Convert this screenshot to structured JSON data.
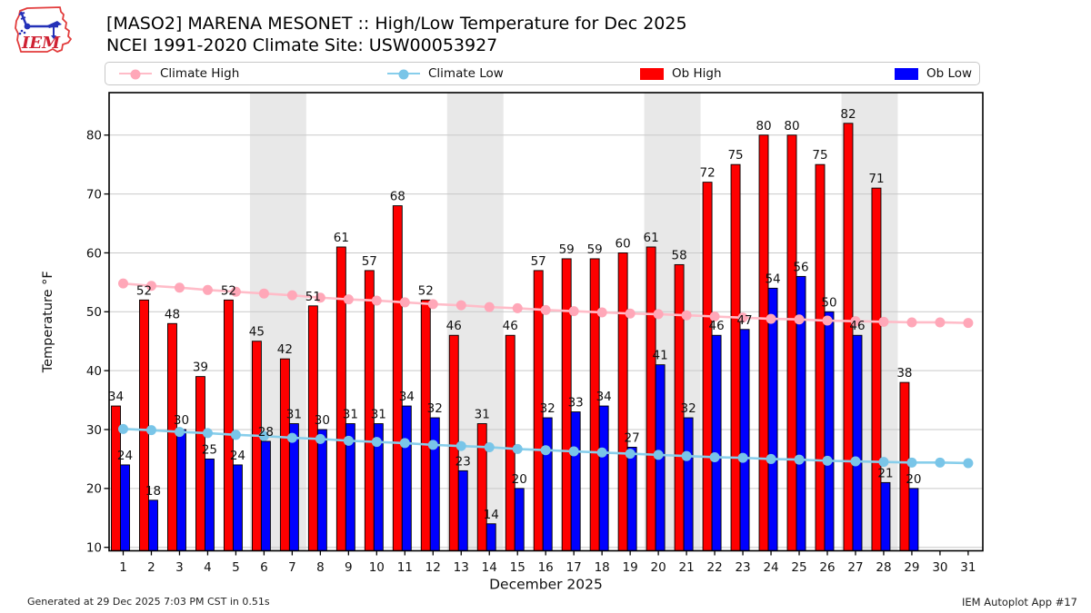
{
  "header": {
    "title": "[MASO2] MARENA MESONET :: High/Low Temperature for Dec 2025",
    "subtitle": "NCEI 1991-2020 Climate Site: USW00053927",
    "logo_text": "IEM"
  },
  "footer": {
    "generated": "Generated at 29 Dec 2025 7:03 PM CST in 0.51s",
    "app": "IEM Autoplot App #17"
  },
  "colors": {
    "ob_high": "#fe0000",
    "ob_low": "#0000fe",
    "climate_high_line": "#ffbcc8",
    "climate_high_marker": "#ffa7b8",
    "climate_low_line": "#87ceeb",
    "climate_low_marker": "#79c5e8",
    "weekend_band": "#e8e8e8",
    "gridline": "#c9c9c9",
    "axis": "#000000",
    "bar_edge": "#000000"
  },
  "chart_data": {
    "type": "bar",
    "title": "[MASO2] MARENA MESONET :: High/Low Temperature for Dec 2025",
    "subtitle": "NCEI 1991-2020 Climate Site: USW00053927",
    "xlabel": "December 2025",
    "ylabel": "Temperature °F",
    "x": [
      1,
      2,
      3,
      4,
      5,
      6,
      7,
      8,
      9,
      10,
      11,
      12,
      13,
      14,
      15,
      16,
      17,
      18,
      19,
      20,
      21,
      22,
      23,
      24,
      25,
      26,
      27,
      28,
      29,
      30,
      31
    ],
    "yticks": [
      10,
      20,
      30,
      40,
      50,
      60,
      70,
      80
    ],
    "ylim": [
      9,
      87
    ],
    "grid": "horizontal",
    "legend_position": "top",
    "weekend_bands": [
      [
        6,
        7
      ],
      [
        13,
        14
      ],
      [
        20,
        21
      ],
      [
        27,
        28
      ]
    ],
    "series": [
      {
        "name": "Climate High",
        "type": "line",
        "values": [
          54.8,
          54.4,
          54.1,
          53.7,
          53.4,
          53.1,
          52.8,
          52.4,
          52.1,
          51.9,
          51.6,
          51.3,
          51.1,
          50.8,
          50.6,
          50.3,
          50.1,
          49.9,
          49.7,
          49.6,
          49.4,
          49.2,
          49.0,
          48.8,
          48.7,
          48.5,
          48.4,
          48.3,
          48.2,
          48.2,
          48.1
        ]
      },
      {
        "name": "Climate Low",
        "type": "line",
        "values": [
          30.1,
          29.9,
          29.6,
          29.4,
          29.1,
          28.9,
          28.6,
          28.4,
          28.1,
          27.9,
          27.7,
          27.4,
          27.2,
          27.0,
          26.7,
          26.5,
          26.3,
          26.1,
          25.9,
          25.7,
          25.5,
          25.3,
          25.2,
          25.0,
          24.9,
          24.7,
          24.6,
          24.5,
          24.4,
          24.4,
          24.3
        ]
      },
      {
        "name": "Ob High",
        "type": "bar",
        "values": [
          34,
          52,
          48,
          39,
          52,
          45,
          42,
          51,
          61,
          57,
          68,
          52,
          46,
          31,
          46,
          57,
          59,
          59,
          60,
          61,
          58,
          72,
          75,
          80,
          80,
          75,
          82,
          71,
          38,
          null,
          null
        ]
      },
      {
        "name": "Ob Low",
        "type": "bar",
        "values": [
          24,
          18,
          30,
          25,
          24,
          28,
          31,
          30,
          31,
          31,
          34,
          32,
          23,
          14,
          20,
          32,
          33,
          34,
          27,
          41,
          32,
          46,
          47,
          54,
          56,
          50,
          46,
          21,
          20,
          null,
          null
        ]
      }
    ]
  }
}
